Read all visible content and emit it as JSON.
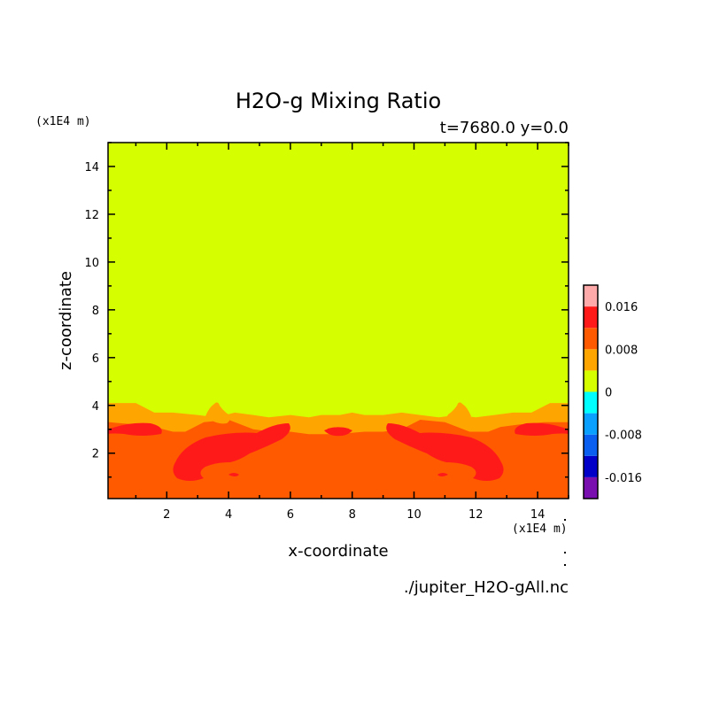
{
  "chart_data": {
    "type": "heatmap",
    "title": "H2O-g Mixing Ratio",
    "subtitle": "t=7680.0 y=0.0",
    "xlabel": "x-coordinate",
    "ylabel": "z-coordinate",
    "x_unit": "(x1E4 m)",
    "z_unit": "(x1E4 m)",
    "source": "./jupiter_H2O-gAll.nc",
    "xlim": [
      0.1,
      15.0
    ],
    "ylim": [
      0.1,
      15.0
    ],
    "x_ticks": [
      "2",
      "4",
      "6",
      "8",
      "10",
      "12",
      "14"
    ],
    "x_tick_values": [
      2,
      4,
      6,
      8,
      10,
      12,
      14
    ],
    "y_ticks": [
      "2",
      "4",
      "6",
      "8",
      "10",
      "12",
      "14"
    ],
    "y_tick_values": [
      2,
      4,
      6,
      8,
      10,
      12,
      14
    ],
    "colorbar": {
      "levels": [
        -0.02,
        -0.016,
        -0.012,
        -0.008,
        -0.004,
        0,
        0.004,
        0.008,
        0.012,
        0.016,
        0.02
      ],
      "colors": [
        "#7a0fb0",
        "#0000c8",
        "#0a5ff0",
        "#0aa0ff",
        "#00ffff",
        "#d5ff00",
        "#ffa500",
        "#ff5a00",
        "#ff1a1a",
        "#ffaaaa"
      ],
      "tick_labels": [
        "0.016",
        "0.008",
        "0",
        "-0.008",
        "-0.016"
      ],
      "tick_values": [
        0.016,
        0.008,
        0,
        -0.008,
        -0.016
      ]
    },
    "regions": {
      "upper_level": 0.002,
      "middle_level": 0.006,
      "lower_level": 0.01,
      "core_level": 0.014,
      "upper_boundary_z": [
        4.1,
        4.1,
        3.7,
        3.7,
        3.6,
        3.5,
        3.7,
        3.6,
        3.5,
        3.6,
        3.5,
        3.6,
        3.6,
        3.7,
        3.6,
        3.6,
        3.7,
        3.6,
        3.5,
        3.6,
        3.5,
        3.6,
        3.7,
        3.7,
        4.1,
        4.1
      ],
      "upper_boundary_x": [
        0.1,
        1.0,
        1.6,
        2.2,
        3.0,
        3.6,
        4.2,
        4.8,
        5.3,
        6.0,
        6.6,
        7.0,
        7.6,
        8.0,
        8.4,
        9.0,
        9.6,
        10.2,
        10.8,
        11.4,
        12.0,
        12.6,
        13.2,
        13.8,
        14.4,
        15.0
      ],
      "middle_boundary_z": [
        3.3,
        3.2,
        3.1,
        2.9,
        2.9,
        3.3,
        3.4,
        3.0,
        2.9,
        2.9,
        2.8,
        2.8,
        2.9,
        2.9,
        3.0,
        3.4,
        3.3,
        2.9,
        2.9,
        3.1,
        3.2,
        3.3,
        3.3
      ],
      "middle_boundary_x": [
        0.1,
        1.0,
        1.6,
        2.2,
        2.6,
        3.2,
        4.0,
        4.8,
        5.4,
        6.0,
        6.6,
        7.5,
        8.4,
        9.0,
        9.6,
        10.2,
        11.0,
        11.8,
        12.4,
        12.8,
        13.4,
        14.2,
        15.0
      ]
    }
  }
}
